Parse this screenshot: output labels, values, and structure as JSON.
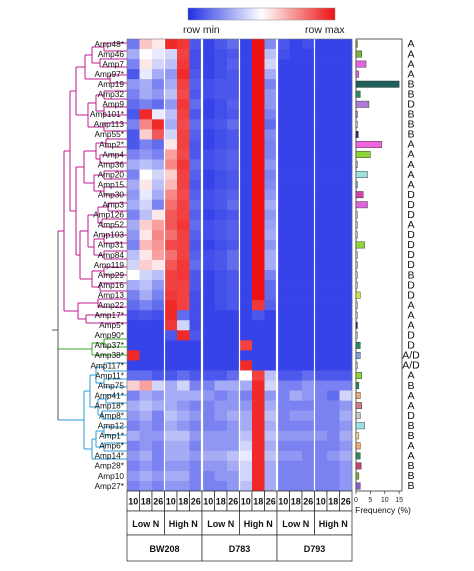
{
  "chart_data": {
    "type": "heatmap",
    "color_scale": {
      "min_label": "row min",
      "max_label": "row max",
      "min_color": "#1f2ee6",
      "mid_color": "#ffffff",
      "max_color": "#ee1111"
    },
    "rows": [
      "Amp48*",
      "Amp46",
      "Amp7",
      "Amp97*",
      "Amp19",
      "Amp32",
      "Amp9",
      "Amp101*",
      "Amp113",
      "Amp55*",
      "Amp2*",
      "Amp4",
      "Amp36",
      "Amp20",
      "Amp15",
      "Amp30",
      "Amp3",
      "Amp126",
      "Amp52",
      "Amp103",
      "Amp31",
      "Amp84",
      "Amp119",
      "Amp29",
      "Amp16",
      "Amp13",
      "Amp22",
      "Amp17*",
      "Amp5*",
      "Amp90*",
      "Amp37*",
      "Amp38*",
      "Amp117*",
      "Amp11*",
      "Amp75",
      "Amp41*",
      "Amp18*",
      "Amp8*",
      "Amp12",
      "Amp1*",
      "Amp6*",
      "Amp14*",
      "Amp28*",
      "Amp10",
      "Amp27*"
    ],
    "groups": [
      "A",
      "A",
      "A",
      "A",
      "B",
      "B",
      "D",
      "B",
      "B",
      "B",
      "A",
      "A",
      "A",
      "A",
      "A",
      "D",
      "D",
      "D",
      "A",
      "D",
      "D",
      "D",
      "D",
      "B",
      "D",
      "D",
      "A",
      "A",
      "A",
      "D",
      "D",
      "A/D",
      "A/D",
      "A",
      "B",
      "A",
      "A",
      "D",
      "B",
      "B",
      "A",
      "A",
      "B",
      "B",
      "B"
    ],
    "columns": [
      "10",
      "18",
      "26",
      "10",
      "18",
      "26",
      "10",
      "18",
      "26",
      "10",
      "18",
      "26",
      "10",
      "18",
      "26",
      "10",
      "18",
      "26"
    ],
    "nitrogen_labels": [
      "Low N",
      "High N",
      "Low N",
      "High N",
      "Low N",
      "High N"
    ],
    "strain_labels": [
      "BW208",
      "D783",
      "D793"
    ],
    "values": [
      [
        0.18,
        0.62,
        0.55,
        0.95,
        0.92,
        0.1,
        0.05,
        0.1,
        0.15,
        0.05,
        1.0,
        0.22,
        0.1,
        0.05,
        0.08,
        0.05,
        0.05,
        0.05
      ],
      [
        0.3,
        0.5,
        0.45,
        0.4,
        0.9,
        0.08,
        0.05,
        0.08,
        0.1,
        0.05,
        1.0,
        0.35,
        0.08,
        0.05,
        0.05,
        0.05,
        0.05,
        0.05
      ],
      [
        0.2,
        0.55,
        0.4,
        0.35,
        0.92,
        0.08,
        0.05,
        0.08,
        0.12,
        0.05,
        1.0,
        0.4,
        0.05,
        0.05,
        0.05,
        0.05,
        0.05,
        0.05
      ],
      [
        0.1,
        0.45,
        0.3,
        0.25,
        0.95,
        0.1,
        0.05,
        0.08,
        0.1,
        0.05,
        1.0,
        0.3,
        0.05,
        0.05,
        0.05,
        0.05,
        0.05,
        0.05
      ],
      [
        0.25,
        0.3,
        0.2,
        0.3,
        0.9,
        0.12,
        0.08,
        0.1,
        0.1,
        0.05,
        1.0,
        0.2,
        0.05,
        0.05,
        0.05,
        0.05,
        0.05,
        0.05
      ],
      [
        0.2,
        0.3,
        0.25,
        0.35,
        0.88,
        0.1,
        0.08,
        0.1,
        0.1,
        0.05,
        1.0,
        0.25,
        0.05,
        0.05,
        0.05,
        0.05,
        0.05,
        0.05
      ],
      [
        0.15,
        0.2,
        0.15,
        0.25,
        0.92,
        0.15,
        0.05,
        0.08,
        0.12,
        0.05,
        1.0,
        0.25,
        0.05,
        0.05,
        0.05,
        0.05,
        0.05,
        0.05
      ],
      [
        0.1,
        0.95,
        0.45,
        0.35,
        0.9,
        0.1,
        0.05,
        0.08,
        0.1,
        0.05,
        1.0,
        0.2,
        0.05,
        0.05,
        0.05,
        0.05,
        0.05,
        0.05
      ],
      [
        0.2,
        0.75,
        0.95,
        0.3,
        0.88,
        0.15,
        0.08,
        0.1,
        0.15,
        0.05,
        1.0,
        0.15,
        0.05,
        0.05,
        0.05,
        0.05,
        0.05,
        0.05
      ],
      [
        0.1,
        0.6,
        0.85,
        0.4,
        0.9,
        0.12,
        0.05,
        0.08,
        0.1,
        0.05,
        1.0,
        0.22,
        0.05,
        0.05,
        0.05,
        0.05,
        0.05,
        0.05
      ],
      [
        0.1,
        0.2,
        0.15,
        0.55,
        0.9,
        0.1,
        0.05,
        0.08,
        0.1,
        0.05,
        1.0,
        0.2,
        0.05,
        0.05,
        0.05,
        0.05,
        0.05,
        0.05
      ],
      [
        0.2,
        0.25,
        0.2,
        0.7,
        0.88,
        0.1,
        0.08,
        0.1,
        0.12,
        0.05,
        1.0,
        0.2,
        0.05,
        0.05,
        0.05,
        0.05,
        0.05,
        0.05
      ],
      [
        0.3,
        0.35,
        0.3,
        0.75,
        0.92,
        0.15,
        0.08,
        0.1,
        0.12,
        0.05,
        1.0,
        0.25,
        0.05,
        0.05,
        0.05,
        0.05,
        0.05,
        0.05
      ],
      [
        0.2,
        0.5,
        0.4,
        0.6,
        0.9,
        0.12,
        0.05,
        0.08,
        0.1,
        0.05,
        1.0,
        0.2,
        0.05,
        0.05,
        0.05,
        0.05,
        0.05,
        0.05
      ],
      [
        0.3,
        0.55,
        0.35,
        0.65,
        0.9,
        0.1,
        0.05,
        0.08,
        0.1,
        0.05,
        1.0,
        0.22,
        0.05,
        0.05,
        0.05,
        0.05,
        0.05,
        0.05
      ],
      [
        0.25,
        0.45,
        0.3,
        0.75,
        0.88,
        0.12,
        0.08,
        0.1,
        0.12,
        0.05,
        1.0,
        0.25,
        0.05,
        0.05,
        0.05,
        0.05,
        0.05,
        0.05
      ],
      [
        0.3,
        0.4,
        0.2,
        0.8,
        0.9,
        0.15,
        0.08,
        0.1,
        0.15,
        0.05,
        1.0,
        0.3,
        0.05,
        0.05,
        0.05,
        0.05,
        0.05,
        0.05
      ],
      [
        0.2,
        0.35,
        0.55,
        0.85,
        0.9,
        0.12,
        0.05,
        0.08,
        0.1,
        0.05,
        1.0,
        0.25,
        0.05,
        0.05,
        0.05,
        0.05,
        0.05,
        0.05
      ],
      [
        0.3,
        0.6,
        0.7,
        0.85,
        0.92,
        0.15,
        0.08,
        0.1,
        0.12,
        0.05,
        1.0,
        0.28,
        0.05,
        0.05,
        0.05,
        0.05,
        0.05,
        0.05
      ],
      [
        0.25,
        0.55,
        0.75,
        0.8,
        0.9,
        0.12,
        0.08,
        0.1,
        0.12,
        0.05,
        1.0,
        0.3,
        0.05,
        0.05,
        0.05,
        0.05,
        0.05,
        0.05
      ],
      [
        0.2,
        0.65,
        0.72,
        0.88,
        0.9,
        0.1,
        0.05,
        0.08,
        0.1,
        0.05,
        1.0,
        0.25,
        0.05,
        0.05,
        0.05,
        0.05,
        0.05,
        0.05
      ],
      [
        0.35,
        0.55,
        0.7,
        0.8,
        0.9,
        0.12,
        0.08,
        0.1,
        0.15,
        0.05,
        1.0,
        0.3,
        0.05,
        0.05,
        0.05,
        0.05,
        0.05,
        0.05
      ],
      [
        0.4,
        0.6,
        0.55,
        0.85,
        0.92,
        0.15,
        0.08,
        0.1,
        0.15,
        0.05,
        1.0,
        0.3,
        0.05,
        0.05,
        0.05,
        0.05,
        0.05,
        0.05
      ],
      [
        0.5,
        0.4,
        0.35,
        0.9,
        0.92,
        0.1,
        0.05,
        0.08,
        0.1,
        0.05,
        1.0,
        0.2,
        0.05,
        0.05,
        0.05,
        0.05,
        0.05,
        0.05
      ],
      [
        0.3,
        0.35,
        0.25,
        0.9,
        0.9,
        0.1,
        0.05,
        0.08,
        0.1,
        0.05,
        1.0,
        0.15,
        0.05,
        0.05,
        0.05,
        0.05,
        0.05,
        0.05
      ],
      [
        0.2,
        0.3,
        0.2,
        0.92,
        0.9,
        0.08,
        0.05,
        0.08,
        0.1,
        0.05,
        1.0,
        0.15,
        0.05,
        0.05,
        0.05,
        0.05,
        0.05,
        0.05
      ],
      [
        0.15,
        0.2,
        0.15,
        0.95,
        0.9,
        0.08,
        0.05,
        0.08,
        0.1,
        0.05,
        0.92,
        0.12,
        0.05,
        0.05,
        0.05,
        0.05,
        0.05,
        0.05
      ],
      [
        0.08,
        0.1,
        0.08,
        0.95,
        0.15,
        0.08,
        0.05,
        0.05,
        0.05,
        0.05,
        0.1,
        0.05,
        0.05,
        0.05,
        0.05,
        0.05,
        0.05,
        0.05
      ],
      [
        0.05,
        0.05,
        0.05,
        0.92,
        0.4,
        0.08,
        0.05,
        0.05,
        0.05,
        0.05,
        0.05,
        0.05,
        0.05,
        0.05,
        0.05,
        0.05,
        0.05,
        0.05
      ],
      [
        0.05,
        0.05,
        0.05,
        0.1,
        0.95,
        0.1,
        0.05,
        0.05,
        0.05,
        0.05,
        0.05,
        0.05,
        0.05,
        0.05,
        0.05,
        0.05,
        0.05,
        0.05
      ],
      [
        0.05,
        0.05,
        0.05,
        0.05,
        0.05,
        0.05,
        0.05,
        0.05,
        0.05,
        0.9,
        0.05,
        0.05,
        0.05,
        0.05,
        0.05,
        0.05,
        0.05,
        0.05
      ],
      [
        0.95,
        0.05,
        0.05,
        0.05,
        0.05,
        0.05,
        0.05,
        0.05,
        0.05,
        0.05,
        0.05,
        0.05,
        0.05,
        0.05,
        0.05,
        0.05,
        0.05,
        0.05
      ],
      [
        0.05,
        0.05,
        0.05,
        0.05,
        0.05,
        0.05,
        0.05,
        0.05,
        0.05,
        0.95,
        0.05,
        0.05,
        0.05,
        0.05,
        0.05,
        0.05,
        0.05,
        0.05
      ],
      [
        0.15,
        0.15,
        0.1,
        0.1,
        0.15,
        0.1,
        0.1,
        0.1,
        0.15,
        0.5,
        0.9,
        0.35,
        0.1,
        0.1,
        0.15,
        0.1,
        0.1,
        0.1
      ],
      [
        0.6,
        0.7,
        0.4,
        0.3,
        0.4,
        0.2,
        0.2,
        0.3,
        0.3,
        0.3,
        0.95,
        0.4,
        0.2,
        0.2,
        0.25,
        0.2,
        0.2,
        0.2
      ],
      [
        0.2,
        0.3,
        0.25,
        0.3,
        0.3,
        0.3,
        0.25,
        0.2,
        0.25,
        0.2,
        0.95,
        0.25,
        0.2,
        0.3,
        0.25,
        0.2,
        0.15,
        0.4
      ],
      [
        0.3,
        0.35,
        0.3,
        0.3,
        0.25,
        0.2,
        0.2,
        0.25,
        0.25,
        0.25,
        0.95,
        0.3,
        0.2,
        0.2,
        0.2,
        0.2,
        0.2,
        0.25
      ],
      [
        0.25,
        0.3,
        0.2,
        0.35,
        0.3,
        0.25,
        0.2,
        0.25,
        0.3,
        0.3,
        0.95,
        0.35,
        0.2,
        0.25,
        0.25,
        0.2,
        0.2,
        0.3
      ],
      [
        0.2,
        0.25,
        0.2,
        0.3,
        0.25,
        0.2,
        0.2,
        0.2,
        0.25,
        0.3,
        0.95,
        0.3,
        0.2,
        0.2,
        0.2,
        0.2,
        0.2,
        0.25
      ],
      [
        0.3,
        0.25,
        0.25,
        0.35,
        0.35,
        0.25,
        0.25,
        0.25,
        0.25,
        0.35,
        0.95,
        0.35,
        0.25,
        0.25,
        0.25,
        0.25,
        0.2,
        0.3
      ],
      [
        0.2,
        0.25,
        0.2,
        0.3,
        0.3,
        0.2,
        0.25,
        0.25,
        0.25,
        0.4,
        0.95,
        0.3,
        0.2,
        0.2,
        0.2,
        0.2,
        0.2,
        0.25
      ],
      [
        0.25,
        0.3,
        0.2,
        0.3,
        0.3,
        0.25,
        0.3,
        0.3,
        0.35,
        0.45,
        0.95,
        0.35,
        0.25,
        0.25,
        0.2,
        0.2,
        0.25,
        0.3
      ],
      [
        0.2,
        0.25,
        0.2,
        0.25,
        0.25,
        0.2,
        0.25,
        0.25,
        0.3,
        0.4,
        0.95,
        0.3,
        0.2,
        0.2,
        0.2,
        0.2,
        0.2,
        0.25
      ],
      [
        0.25,
        0.3,
        0.25,
        0.3,
        0.3,
        0.2,
        0.2,
        0.25,
        0.25,
        0.4,
        0.95,
        0.3,
        0.2,
        0.2,
        0.2,
        0.2,
        0.2,
        0.25
      ],
      [
        0.2,
        0.25,
        0.2,
        0.25,
        0.25,
        0.2,
        0.2,
        0.2,
        0.25,
        0.35,
        0.95,
        0.3,
        0.2,
        0.2,
        0.2,
        0.2,
        0.2,
        0.25
      ]
    ],
    "frequency": {
      "xlabel": "Frequency (%)",
      "ticks": [
        0,
        5,
        10,
        15
      ],
      "xlim": [
        0,
        16
      ],
      "values": [
        0.5,
        2.0,
        3.5,
        1.0,
        15.0,
        1.5,
        4.5,
        0.5,
        0.5,
        0.8,
        9.0,
        5.0,
        0.5,
        4.0,
        0.5,
        2.5,
        4.0,
        0.5,
        0.5,
        0.5,
        3.0,
        0.5,
        0.5,
        0.5,
        0.5,
        1.5,
        0.5,
        0.5,
        0.5,
        0.5,
        1.5,
        1.5,
        0.5,
        2.0,
        1.0,
        1.5,
        2.0,
        1.5,
        3.0,
        1.0,
        1.5,
        1.5,
        1.8,
        1.0,
        1.5
      ],
      "colors": [
        "#7fb23c",
        "#7fb23c",
        "#dd66dd",
        "#dd66dd",
        "#1e5f5a",
        "#2e8b57",
        "#b07ad8",
        "#b07ad8",
        "#d9d9d9",
        "#2a2a7a",
        "#ee66dd",
        "#8dd33a",
        "#c8c8c8",
        "#9ee0e0",
        "#7fb2d8",
        "#cc44aa",
        "#dd66dd",
        "#d9d9d9",
        "#d9d9d9",
        "#d9d9d9",
        "#8dd33a",
        "#d9d9d9",
        "#d9d9d9",
        "#d9d9d9",
        "#d9d9d9",
        "#cfe24a",
        "#d9d9d9",
        "#d9d9d9",
        "#2a2a7a",
        "#d9d9d9",
        "#2e8b57",
        "#7f9fdf",
        "#d9d9d9",
        "#8dd33a",
        "#2e8b57",
        "#f0a870",
        "#d47a8a",
        "#c8c8c8",
        "#9ee0e0",
        "#f7d7a0",
        "#f0a870",
        "#2e8b57",
        "#cc4466",
        "#7fb23c",
        "#8d5ac8"
      ]
    }
  }
}
